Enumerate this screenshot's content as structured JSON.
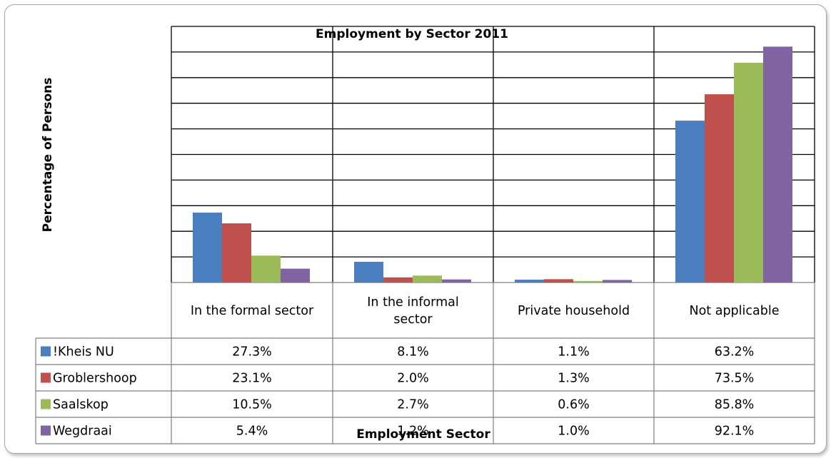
{
  "chart_data": {
    "type": "bar",
    "title": "Employment by Sector 2011",
    "xlabel": "Employment Sector",
    "ylabel": "Percentage of Persons",
    "ylim": [
      0,
      100
    ],
    "grid": true,
    "legend": "data-table",
    "categories": [
      "In the formal sector",
      "In the informal sector",
      "Private household",
      "Not applicable"
    ],
    "category_lines": [
      [
        "In the formal sector"
      ],
      [
        "In the informal",
        "sector"
      ],
      [
        "Private household"
      ],
      [
        "Not applicable"
      ]
    ],
    "series": [
      {
        "name": "!Kheis NU",
        "color": "#4a7ebf",
        "values": [
          27.3,
          8.1,
          1.1,
          63.2
        ],
        "labels": [
          "27.3%",
          "8.1%",
          "1.1%",
          "63.2%"
        ]
      },
      {
        "name": "Groblershoop",
        "color": "#c0504d",
        "values": [
          23.1,
          2.0,
          1.3,
          73.5
        ],
        "labels": [
          "23.1%",
          "2.0%",
          "1.3%",
          "73.5%"
        ]
      },
      {
        "name": "Saalskop",
        "color": "#9bbb59",
        "values": [
          10.5,
          2.7,
          0.6,
          85.8
        ],
        "labels": [
          "10.5%",
          "2.7%",
          "0.6%",
          "85.8%"
        ]
      },
      {
        "name": "Wegdraai",
        "color": "#8064a2",
        "values": [
          5.4,
          1.2,
          1.0,
          92.1
        ],
        "labels": [
          "5.4%",
          "1.2%",
          "1.0%",
          "92.1%"
        ]
      }
    ]
  }
}
